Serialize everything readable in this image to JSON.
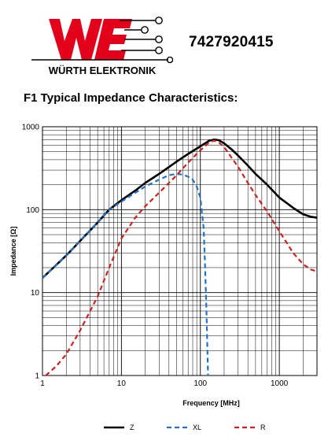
{
  "header": {
    "brand": "WÜRTH ELEKTRONIK",
    "logo_letters": "WE",
    "part_number": "7427920415",
    "brand_color": "#e2001a"
  },
  "chart_data": {
    "type": "line",
    "title": "F1 Typical Impedance Characteristics:",
    "xlabel": "Frequency [MHz]",
    "ylabel": "Impedance [Ω]",
    "x_scale": "log",
    "y_scale": "log",
    "xlim": [
      1,
      3000
    ],
    "ylim": [
      1,
      1000
    ],
    "x_ticks": [
      1,
      10,
      100,
      1000
    ],
    "x_tick_labels": [
      "1",
      "10",
      "100",
      "1000"
    ],
    "y_ticks": [
      1,
      10,
      100,
      1000
    ],
    "y_tick_labels": [
      "1",
      "10",
      "100",
      "1000"
    ],
    "grid": true,
    "legend_position": "bottom",
    "series": [
      {
        "name": "Z",
        "color": "#000000",
        "dash": "solid",
        "x": [
          1,
          2,
          3,
          5,
          7,
          10,
          15,
          20,
          30,
          50,
          70,
          100,
          130,
          150,
          170,
          200,
          250,
          300,
          400,
          500,
          700,
          1000,
          1500,
          2000,
          2500,
          3000
        ],
        "y": [
          15,
          28,
          42,
          70,
          100,
          130,
          170,
          210,
          270,
          380,
          470,
          580,
          680,
          700,
          690,
          630,
          530,
          450,
          340,
          270,
          200,
          140,
          105,
          88,
          82,
          80
        ]
      },
      {
        "name": "XL",
        "color": "#1f72c4",
        "dash": "dashed",
        "x": [
          1,
          2,
          3,
          5,
          7,
          10,
          15,
          20,
          30,
          40,
          50,
          60,
          70,
          80,
          90,
          100,
          110,
          115,
          120,
          125
        ],
        "y": [
          15,
          28,
          42,
          70,
          100,
          125,
          160,
          190,
          230,
          260,
          270,
          265,
          250,
          230,
          190,
          140,
          60,
          20,
          5,
          1
        ]
      },
      {
        "name": "R",
        "color": "#cc2222",
        "dash": "dashed",
        "x": [
          1.1,
          1.5,
          2,
          3,
          5,
          7,
          10,
          15,
          20,
          30,
          50,
          70,
          100,
          130,
          150,
          170,
          200,
          250,
          300,
          400,
          500,
          700,
          1000,
          1500,
          2000,
          2500,
          3000
        ],
        "y": [
          1,
          1.3,
          1.8,
          3.5,
          9,
          20,
          45,
          80,
          110,
          160,
          260,
          370,
          520,
          650,
          680,
          650,
          570,
          420,
          330,
          210,
          150,
          95,
          55,
          30,
          22,
          19,
          18
        ]
      }
    ]
  }
}
